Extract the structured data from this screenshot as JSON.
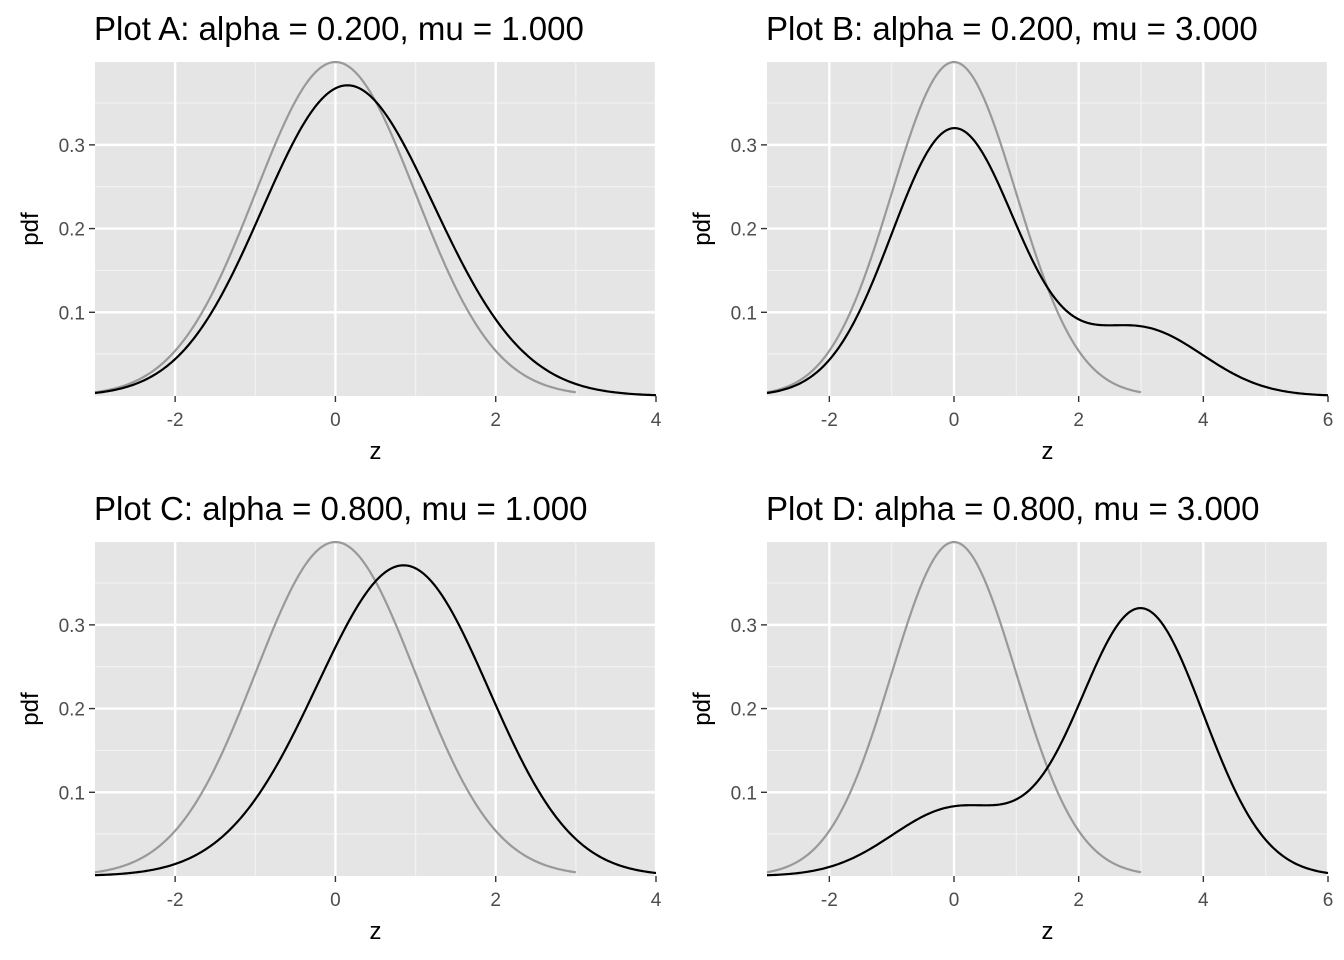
{
  "colors": {
    "panel_background": "#e5e5e5",
    "grid_major": "#ffffff",
    "grid_minor": "#f2f2f2",
    "mixture_line": "#000000",
    "reference_line": "#999999",
    "tick_text": "#4d4d4d",
    "axis_title": "#000000"
  },
  "chart_data": [
    {
      "type": "line",
      "title": "Plot A: alpha = 0.200, mu = 1.000",
      "xlabel": "z",
      "ylabel": "pdf",
      "xlim": [
        -3,
        4
      ],
      "ylim": [
        0.0,
        0.399
      ],
      "x_ticks": [
        "-2",
        "0",
        "2",
        "4"
      ],
      "x_tick_values": [
        -2,
        0,
        2,
        4
      ],
      "y_ticks": [
        "0.1",
        "0.2",
        "0.3"
      ],
      "y_tick_values": [
        0.1,
        0.2,
        0.3
      ],
      "grid": true,
      "params": {
        "alpha": 0.2,
        "mu": 1.0
      },
      "series": [
        {
          "color": "#999999",
          "x_range": [
            -3,
            3
          ],
          "mixture": [
            [
              1.0,
              0.0
            ]
          ]
        },
        {
          "color": "#000000",
          "x_range": [
            -3,
            4
          ],
          "mixture": [
            [
              0.8,
              0.0
            ],
            [
              0.2,
              1.0
            ]
          ]
        }
      ]
    },
    {
      "type": "line",
      "title": "Plot B: alpha = 0.200, mu = 3.000",
      "xlabel": "z",
      "ylabel": "pdf",
      "xlim": [
        -3,
        6
      ],
      "ylim": [
        0.0,
        0.399
      ],
      "x_ticks": [
        "-2",
        "0",
        "2",
        "4",
        "6"
      ],
      "x_tick_values": [
        -2,
        0,
        2,
        4,
        6
      ],
      "y_ticks": [
        "0.1",
        "0.2",
        "0.3"
      ],
      "y_tick_values": [
        0.1,
        0.2,
        0.3
      ],
      "grid": true,
      "params": {
        "alpha": 0.2,
        "mu": 3.0
      },
      "series": [
        {
          "color": "#999999",
          "x_range": [
            -3,
            3
          ],
          "mixture": [
            [
              1.0,
              0.0
            ]
          ]
        },
        {
          "color": "#000000",
          "x_range": [
            -3,
            6
          ],
          "mixture": [
            [
              0.8,
              0.0
            ],
            [
              0.2,
              3.0
            ]
          ]
        }
      ]
    },
    {
      "type": "line",
      "title": "Plot C: alpha = 0.800, mu = 1.000",
      "xlabel": "z",
      "ylabel": "pdf",
      "xlim": [
        -3,
        4
      ],
      "ylim": [
        0.0,
        0.399
      ],
      "x_ticks": [
        "-2",
        "0",
        "2",
        "4"
      ],
      "x_tick_values": [
        -2,
        0,
        2,
        4
      ],
      "y_ticks": [
        "0.1",
        "0.2",
        "0.3"
      ],
      "y_tick_values": [
        0.1,
        0.2,
        0.3
      ],
      "grid": true,
      "params": {
        "alpha": 0.8,
        "mu": 1.0
      },
      "series": [
        {
          "color": "#999999",
          "x_range": [
            -3,
            3
          ],
          "mixture": [
            [
              1.0,
              0.0
            ]
          ]
        },
        {
          "color": "#000000",
          "x_range": [
            -3,
            4
          ],
          "mixture": [
            [
              0.2,
              0.0
            ],
            [
              0.8,
              1.0
            ]
          ]
        }
      ]
    },
    {
      "type": "line",
      "title": "Plot D: alpha = 0.800, mu = 3.000",
      "xlabel": "z",
      "ylabel": "pdf",
      "xlim": [
        -3,
        6
      ],
      "ylim": [
        0.0,
        0.399
      ],
      "x_ticks": [
        "-2",
        "0",
        "2",
        "4",
        "6"
      ],
      "x_tick_values": [
        -2,
        0,
        2,
        4,
        6
      ],
      "y_ticks": [
        "0.1",
        "0.2",
        "0.3"
      ],
      "y_tick_values": [
        0.1,
        0.2,
        0.3
      ],
      "grid": true,
      "params": {
        "alpha": 0.8,
        "mu": 3.0
      },
      "series": [
        {
          "color": "#999999",
          "x_range": [
            -3,
            3
          ],
          "mixture": [
            [
              1.0,
              0.0
            ]
          ]
        },
        {
          "color": "#000000",
          "x_range": [
            -3,
            6
          ],
          "mixture": [
            [
              0.2,
              0.0
            ],
            [
              0.8,
              3.0
            ]
          ]
        }
      ]
    }
  ]
}
